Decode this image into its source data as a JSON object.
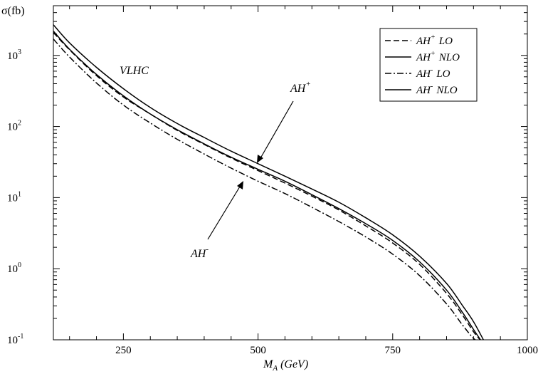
{
  "chart_data": {
    "type": "line",
    "title": "",
    "ylabel": "σ(fb)",
    "xlabel": {
      "main": "M",
      "sub": "A",
      "unit": "(GeV)"
    },
    "xlim": [
      120,
      1000
    ],
    "ylim": [
      0.1,
      5000
    ],
    "yscale": "log",
    "grid": false,
    "x_ticks": [
      250,
      500,
      750,
      1000
    ],
    "y_ticks": [
      {
        "value": 0.1,
        "base": "10",
        "exp": "-1"
      },
      {
        "value": 1,
        "base": "10",
        "exp": "0"
      },
      {
        "value": 10,
        "base": "10",
        "exp": "1"
      },
      {
        "value": 100,
        "base": "10",
        "exp": "2"
      },
      {
        "value": 1000,
        "base": "10",
        "exp": "3"
      }
    ],
    "annotations": {
      "collider": "VLHC",
      "ah_plus": {
        "base": "AH",
        "sup": "+"
      },
      "ah_minus": {
        "base": "AH",
        "sup": "-"
      }
    },
    "legend_position": "top-right",
    "series": [
      {
        "name": {
          "base": "AH",
          "sup": "+",
          "suffix": "LO"
        },
        "dash": "dashed",
        "x": [
          120,
          150,
          200,
          250,
          300,
          350,
          400,
          450,
          500,
          550,
          600,
          650,
          700,
          750,
          800,
          850,
          880,
          900,
          915
        ],
        "y": [
          2100,
          1200,
          520,
          260,
          150,
          88,
          56,
          36,
          24,
          16,
          10.5,
          6.7,
          4.0,
          2.3,
          1.15,
          0.45,
          0.22,
          0.13,
          0.095
        ]
      },
      {
        "name": {
          "base": "AH",
          "sup": "+",
          "suffix": "NLO"
        },
        "dash": "solid",
        "x": [
          120,
          150,
          200,
          250,
          300,
          350,
          400,
          450,
          500,
          550,
          600,
          650,
          700,
          750,
          800,
          850,
          880,
          900,
          920
        ],
        "y": [
          2700,
          1500,
          680,
          340,
          185,
          110,
          70,
          45,
          30,
          20,
          13.2,
          8.6,
          5.2,
          3.0,
          1.5,
          0.62,
          0.3,
          0.18,
          0.095
        ]
      },
      {
        "name": {
          "base": "AH",
          "sup": "-",
          "suffix": "LO"
        },
        "dash": "dashdot",
        "x": [
          120,
          150,
          200,
          250,
          300,
          350,
          400,
          450,
          500,
          550,
          600,
          650,
          700,
          750,
          800,
          850,
          880,
          900,
          910
        ],
        "y": [
          1700,
          950,
          410,
          200,
          112,
          66,
          41,
          26,
          17,
          11.4,
          7.3,
          4.6,
          2.8,
          1.6,
          0.8,
          0.32,
          0.16,
          0.105,
          0.095
        ]
      },
      {
        "name": {
          "base": "AH",
          "sup": "-",
          "suffix": "NLO"
        },
        "dash": "solid",
        "x": [
          120,
          150,
          200,
          250,
          300,
          350,
          400,
          450,
          500,
          550,
          600,
          650,
          700,
          750,
          800,
          850,
          880,
          900,
          915
        ],
        "y": [
          2200,
          1220,
          540,
          270,
          150,
          90,
          57,
          37,
          25,
          17,
          11.0,
          7.0,
          4.3,
          2.5,
          1.25,
          0.5,
          0.24,
          0.14,
          0.095
        ]
      }
    ]
  }
}
